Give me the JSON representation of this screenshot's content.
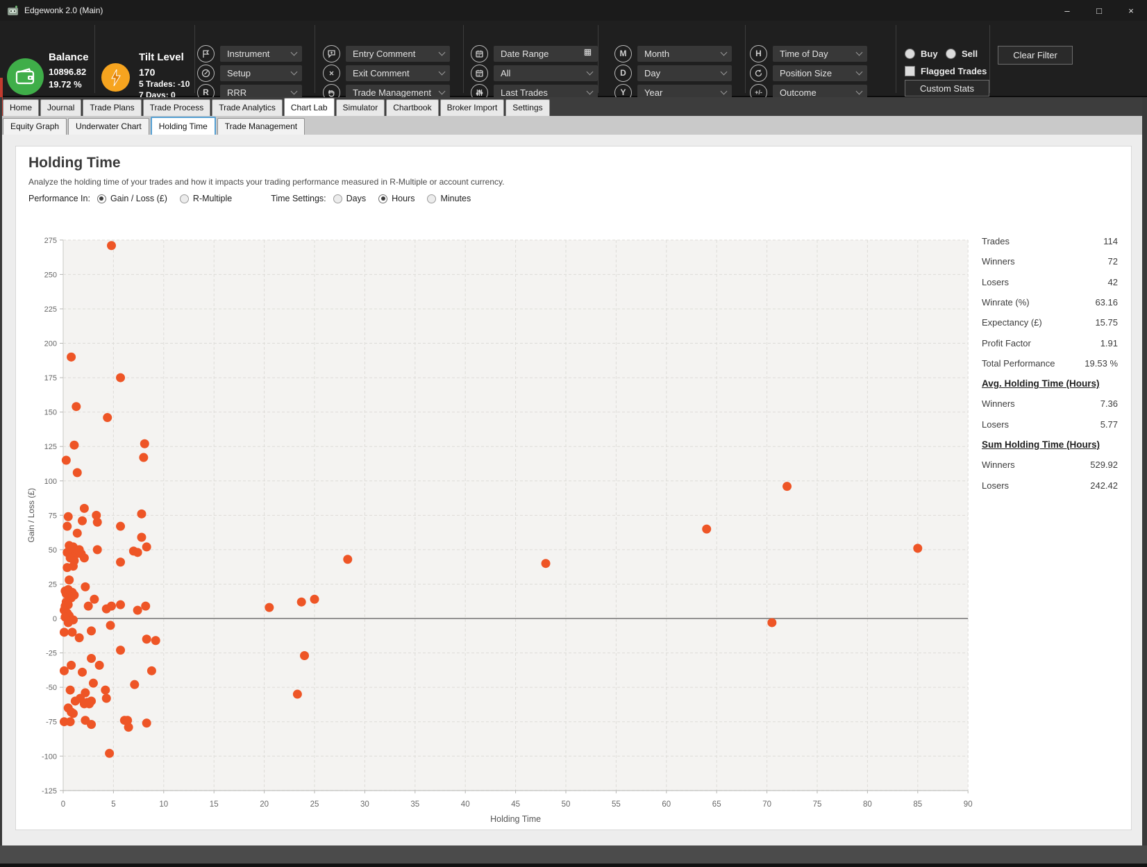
{
  "window": {
    "title": "Edgewonk 2.0 (Main)",
    "minimize": "–",
    "maximize": "□",
    "close": "×"
  },
  "toolbar": {
    "balance": {
      "label": "Balance",
      "value": "10896.82",
      "percent": "19.72 %"
    },
    "tilt": {
      "label": "Tilt Level",
      "value": "170",
      "line2": "5 Trades: -10",
      "line3": "7 Days: 0"
    },
    "filter_columns": [
      {
        "items": [
          {
            "icon": "instrument-icon",
            "label": "Instrument"
          },
          {
            "icon": "setup-icon",
            "label": "Setup"
          },
          {
            "icon": "rrr-icon",
            "label": "RRR"
          }
        ]
      },
      {
        "items": [
          {
            "icon": "entry-comment-icon",
            "label": "Entry Comment"
          },
          {
            "icon": "exit-comment-icon",
            "label": "Exit Comment"
          },
          {
            "icon": "trade-management-icon",
            "label": "Trade Management"
          }
        ]
      },
      {
        "items": [
          {
            "icon": "calendar-icon",
            "label": "Date Range",
            "right": "grid"
          },
          {
            "icon": "calendar-icon",
            "label": "All"
          },
          {
            "icon": "sliders-icon",
            "label": "Last Trades"
          }
        ]
      },
      {
        "items": [
          {
            "icon": "letter-m-icon",
            "label": "Month"
          },
          {
            "icon": "letter-d-icon",
            "label": "Day"
          },
          {
            "icon": "letter-y-icon",
            "label": "Year"
          }
        ]
      },
      {
        "items": [
          {
            "icon": "letter-h-icon",
            "label": "Time of Day"
          },
          {
            "icon": "rotate-icon",
            "label": "Position Size"
          },
          {
            "icon": "plusminus-icon",
            "label": "Outcome"
          }
        ]
      }
    ],
    "buy_label": "Buy",
    "sell_label": "Sell",
    "flagged_label": "Flagged Trades",
    "custom_stats_label": "Custom Stats",
    "clear_filter_label": "Clear Filter"
  },
  "tabs": {
    "main": [
      "Home",
      "Journal",
      "Trade Plans",
      "Trade Process",
      "Trade Analytics",
      "Chart Lab",
      "Simulator",
      "Chartbook",
      "Broker Import",
      "Settings"
    ],
    "active_main": "Chart Lab",
    "sub": [
      "Equity Graph",
      "Underwater Chart",
      "Holding Time",
      "Trade Management"
    ],
    "active_sub": "Holding Time"
  },
  "page": {
    "title": "Holding Time",
    "subtitle": "Analyze the holding time of your trades and how it impacts your trading performance measured in R-Multiple or account currency.",
    "performance_label": "Performance In:",
    "performance_options": [
      {
        "label": "Gain / Loss (£)",
        "selected": true
      },
      {
        "label": "R-Multiple",
        "selected": false
      }
    ],
    "time_label": "Time Settings:",
    "time_options": [
      {
        "label": "Days",
        "selected": false
      },
      {
        "label": "Hours",
        "selected": true
      },
      {
        "label": "Minutes",
        "selected": false
      }
    ]
  },
  "stats": [
    {
      "label": "Trades",
      "value": "114"
    },
    {
      "label": "Winners",
      "value": "72"
    },
    {
      "label": "Losers",
      "value": "42"
    },
    {
      "label": "Winrate (%)",
      "value": "63.16"
    },
    {
      "label": "Expectancy (£)",
      "value": "15.75"
    },
    {
      "label": "Profit Factor",
      "value": "1.91"
    },
    {
      "label": "Total Performance",
      "value": "19.53 %"
    },
    {
      "header": "Avg. Holding Time (Hours)"
    },
    {
      "label": "Winners",
      "value": "7.36"
    },
    {
      "label": "Losers",
      "value": "5.77"
    },
    {
      "header": "Sum Holding Time (Hours)"
    },
    {
      "label": "Winners",
      "value": "529.92"
    },
    {
      "label": "Losers",
      "value": "242.42"
    }
  ],
  "chart_data": {
    "type": "scatter",
    "xlabel": "Holding Time",
    "ylabel": "Gain / Loss (£)",
    "xlim": [
      0,
      90
    ],
    "ylim": [
      -125,
      275
    ],
    "xtick_step": 5,
    "ytick_step": 25,
    "grid": true,
    "zero_line": true,
    "point_color": "#ee5526",
    "plot_bg": "#f4f3f1",
    "points": [
      [
        4.8,
        271
      ],
      [
        0.8,
        190
      ],
      [
        5.7,
        175
      ],
      [
        1.3,
        154
      ],
      [
        4.4,
        146
      ],
      [
        8.1,
        127
      ],
      [
        1.1,
        126
      ],
      [
        8.0,
        117
      ],
      [
        0.3,
        115
      ],
      [
        1.4,
        106
      ],
      [
        72,
        96
      ],
      [
        2.1,
        80
      ],
      [
        7.8,
        76
      ],
      [
        3.3,
        75
      ],
      [
        0.5,
        74
      ],
      [
        1.9,
        71
      ],
      [
        3.4,
        70
      ],
      [
        0.4,
        67
      ],
      [
        5.7,
        67
      ],
      [
        64,
        65
      ],
      [
        1.4,
        62
      ],
      [
        7.8,
        59
      ],
      [
        0.6,
        53
      ],
      [
        1.0,
        52
      ],
      [
        8.3,
        52
      ],
      [
        85,
        51
      ],
      [
        1.6,
        50
      ],
      [
        3.4,
        50
      ],
      [
        1.2,
        50
      ],
      [
        7.0,
        49
      ],
      [
        0.4,
        48
      ],
      [
        7.4,
        48
      ],
      [
        0.8,
        47
      ],
      [
        1.3,
        47
      ],
      [
        1.8,
        47
      ],
      [
        0.9,
        45
      ],
      [
        0.7,
        44
      ],
      [
        2.1,
        44
      ],
      [
        28.3,
        43
      ],
      [
        1.1,
        42
      ],
      [
        5.7,
        41
      ],
      [
        48,
        40
      ],
      [
        1.0,
        38
      ],
      [
        0.4,
        37
      ],
      [
        0.6,
        28
      ],
      [
        2.2,
        23
      ],
      [
        0.5,
        21
      ],
      [
        0.2,
        20
      ],
      [
        0.9,
        19
      ],
      [
        0.3,
        18
      ],
      [
        0.4,
        18
      ],
      [
        1.1,
        17
      ],
      [
        0.6,
        16
      ],
      [
        0.8,
        15
      ],
      [
        25,
        14
      ],
      [
        3.1,
        14
      ],
      [
        0.3,
        12
      ],
      [
        23.7,
        12
      ],
      [
        5.7,
        10
      ],
      [
        0.5,
        10
      ],
      [
        2.5,
        9
      ],
      [
        4.8,
        9
      ],
      [
        8.2,
        9
      ],
      [
        0.2,
        9
      ],
      [
        20.5,
        8
      ],
      [
        4.3,
        7
      ],
      [
        7.4,
        6
      ],
      [
        0.1,
        6
      ],
      [
        0.4,
        4
      ],
      [
        0.6,
        2
      ],
      [
        0.2,
        1
      ],
      [
        1.0,
        -1
      ],
      [
        0.5,
        -3
      ],
      [
        70.5,
        -3
      ],
      [
        4.7,
        -5
      ],
      [
        2.8,
        -9
      ],
      [
        0.1,
        -10
      ],
      [
        0.9,
        -10
      ],
      [
        1.6,
        -14
      ],
      [
        8.3,
        -15
      ],
      [
        9.2,
        -16
      ],
      [
        5.7,
        -23
      ],
      [
        24,
        -27
      ],
      [
        2.8,
        -29
      ],
      [
        0.8,
        -34
      ],
      [
        3.6,
        -34
      ],
      [
        0.1,
        -38
      ],
      [
        8.8,
        -38
      ],
      [
        1.9,
        -39
      ],
      [
        3.0,
        -47
      ],
      [
        7.1,
        -48
      ],
      [
        0.7,
        -52
      ],
      [
        4.2,
        -52
      ],
      [
        2.2,
        -54
      ],
      [
        23.3,
        -55
      ],
      [
        4.3,
        -58
      ],
      [
        1.7,
        -58
      ],
      [
        2.8,
        -60
      ],
      [
        1.2,
        -60
      ],
      [
        2.4,
        -61
      ],
      [
        2.1,
        -62
      ],
      [
        2.6,
        -62
      ],
      [
        0.5,
        -65
      ],
      [
        0.8,
        -68
      ],
      [
        1.0,
        -69
      ],
      [
        2.2,
        -74
      ],
      [
        6.1,
        -74
      ],
      [
        6.4,
        -74
      ],
      [
        0.1,
        -75
      ],
      [
        0.7,
        -75
      ],
      [
        8.3,
        -76
      ],
      [
        2.8,
        -77
      ],
      [
        6.5,
        -79
      ],
      [
        4.6,
        -98
      ]
    ]
  },
  "colors": {
    "accent_orange": "#ee5526",
    "toolbar_bg": "#1f1f1f",
    "balance_green": "#3fae49",
    "tilt_amber": "#f6a41f",
    "active_tab_border": "#56a0d3"
  }
}
